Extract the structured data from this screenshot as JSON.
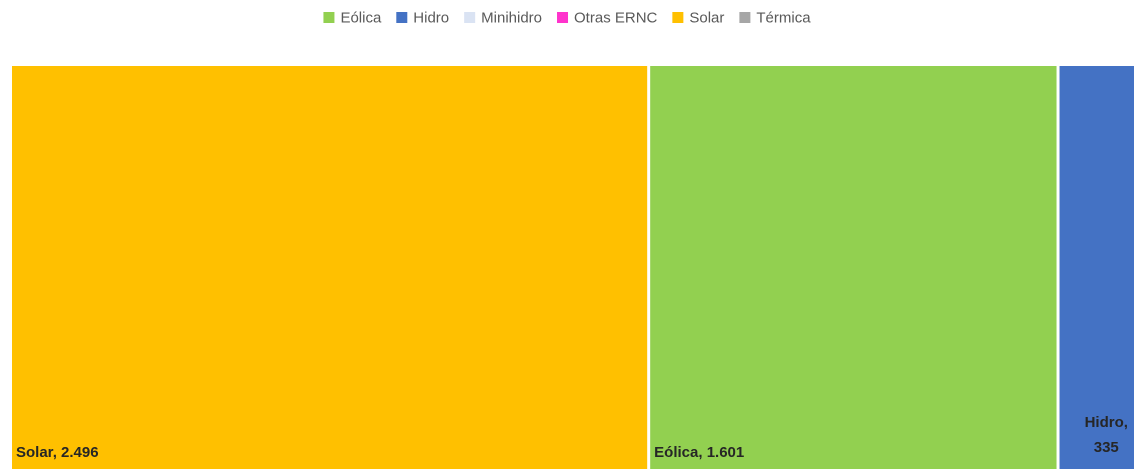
{
  "chart_data": {
    "type": "treemap",
    "categories": [
      "Eólica",
      "Hidro",
      "Minihidro",
      "Otras ERNC",
      "Solar",
      "Térmica"
    ],
    "values": [
      1601,
      335,
      8,
      1,
      2496,
      2
    ],
    "value_labels": [
      "1.601",
      "335",
      null,
      null,
      "2.496",
      null
    ],
    "colors": [
      "#92d050",
      "#4472c4",
      "#dae3f3",
      "#ff33cc",
      "#ffc000",
      "#a6a6a6"
    ],
    "legend": "top"
  }
}
